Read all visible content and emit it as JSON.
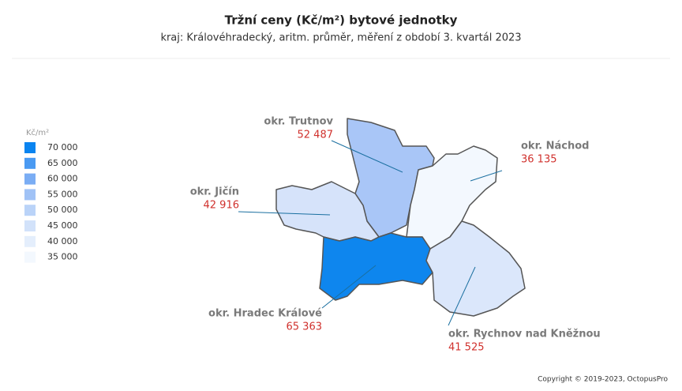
{
  "chart_data": {
    "type": "choropleth",
    "title": "Tržní ceny  (Kč/m²) bytové jednotky",
    "subtitle": "kraj: Královéhradecký, aritm. průměr, měření z období 3. kvartál 2023",
    "legend_title": "Kč/m²",
    "categories": [
      "okr. Trutnov",
      "okr. Náchod",
      "okr. Jičín",
      "okr. Hradec Králové",
      "okr. Rychnov nad Kněžnou"
    ],
    "values": [
      52487,
      36135,
      42916,
      65363,
      41525
    ],
    "value_labels": [
      "52 487",
      "36 135",
      "42 916",
      "65 363",
      "41 525"
    ],
    "colors": [
      "#a9c6f7",
      "#f3f8fe",
      "#d6e3fa",
      "#0e86ee",
      "#dbe7fb"
    ],
    "legend": [
      {
        "value": 70000,
        "label": "70 000",
        "color": "#0a84f0"
      },
      {
        "value": 65000,
        "label": "65 000",
        "color": "#4a9af2"
      },
      {
        "value": 60000,
        "label": "60 000",
        "color": "#7aadf4"
      },
      {
        "value": 55000,
        "label": "55 000",
        "color": "#a0c2f6"
      },
      {
        "value": 50000,
        "label": "50 000",
        "color": "#bad3f8"
      },
      {
        "value": 45000,
        "label": "45 000",
        "color": "#d2e2fa"
      },
      {
        "value": 40000,
        "label": "40 000",
        "color": "#e4eefc"
      },
      {
        "value": 35000,
        "label": "35 000",
        "color": "#f3f8fe"
      }
    ],
    "credit": "Copyright © 2019-2023, OctopusPro"
  }
}
